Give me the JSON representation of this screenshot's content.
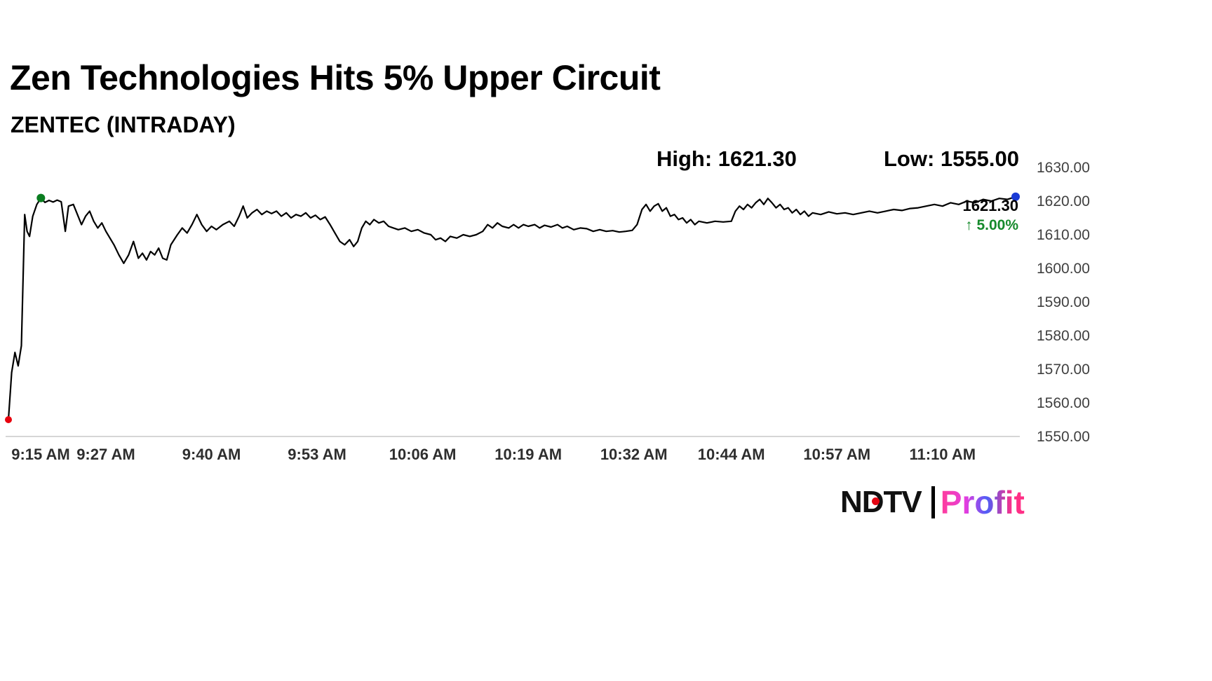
{
  "header": {
    "title": "Zen Technologies Hits 5% Upper Circuit",
    "subtitle": "ZENTEC (INTRADAY)"
  },
  "stats": {
    "high": "High: 1621.30",
    "low": "Low: 1555.00"
  },
  "callout": {
    "price": "1621.30",
    "change": "↑ 5.00%",
    "change_color": "#168a2c"
  },
  "branding": {
    "ndtv": "NDTV",
    "profit": "Profit",
    "dot_color": "#e30613",
    "profit_gradient": [
      "#ff3d9a",
      "#e43ddf",
      "#4e5ef7",
      "#ff2f86"
    ]
  },
  "chart_data": {
    "type": "line",
    "title": "ZENTEC intraday price",
    "xlabel": "",
    "ylabel": "",
    "xlim": [
      0,
      124
    ],
    "ylim": [
      1550,
      1630
    ],
    "grid": false,
    "legend": "none",
    "line_color": "#000000",
    "axis_color": "#c9c9c9",
    "high": 1621.3,
    "low": 1555.0,
    "last": 1621.3,
    "change_pct": 5.0,
    "x_ticks": [
      {
        "t": 0,
        "label": "9:15 AM"
      },
      {
        "t": 12,
        "label": "9:27 AM"
      },
      {
        "t": 25,
        "label": "9:40 AM"
      },
      {
        "t": 38,
        "label": "9:53 AM"
      },
      {
        "t": 51,
        "label": "10:06 AM"
      },
      {
        "t": 64,
        "label": "10:19 AM"
      },
      {
        "t": 77,
        "label": "10:32 AM"
      },
      {
        "t": 89,
        "label": "10:44 AM"
      },
      {
        "t": 102,
        "label": "10:57 AM"
      },
      {
        "t": 115,
        "label": "11:10 AM"
      }
    ],
    "y_ticks": [
      {
        "value": 1630,
        "label": "1630.00"
      },
      {
        "value": 1620,
        "label": "1620.00"
      },
      {
        "value": 1610,
        "label": "1610.00"
      },
      {
        "value": 1600,
        "label": "1600.00"
      },
      {
        "value": 1590,
        "label": "1590.00"
      },
      {
        "value": 1580,
        "label": "1580.00"
      },
      {
        "value": 1570,
        "label": "1570.00"
      },
      {
        "value": 1560,
        "label": "1560.00"
      },
      {
        "value": 1550,
        "label": "1550.00"
      }
    ],
    "markers": [
      {
        "name": "open-low",
        "t": 0,
        "price": 1555.0,
        "color": "#e8000d",
        "r": 5
      },
      {
        "name": "early-high",
        "t": 4,
        "price": 1620.9,
        "color": "#0a7d20",
        "r": 6
      },
      {
        "name": "last-price",
        "t": 124,
        "price": 1621.3,
        "color": "#1a3bd6",
        "r": 6
      }
    ],
    "series": [
      {
        "name": "ZENTEC",
        "points": [
          [
            0,
            1555
          ],
          [
            0.4,
            1569
          ],
          [
            0.8,
            1575
          ],
          [
            1.2,
            1571
          ],
          [
            1.6,
            1577
          ],
          [
            2.0,
            1616
          ],
          [
            2.3,
            1611
          ],
          [
            2.6,
            1609.5
          ],
          [
            3.0,
            1615.5
          ],
          [
            3.5,
            1619
          ],
          [
            4.0,
            1620.9
          ],
          [
            4.5,
            1619.6
          ],
          [
            5.0,
            1620.2
          ],
          [
            5.5,
            1619.7
          ],
          [
            6.0,
            1620.3
          ],
          [
            6.5,
            1619.8
          ],
          [
            7.0,
            1611
          ],
          [
            7.4,
            1618.5
          ],
          [
            8.0,
            1619
          ],
          [
            8.5,
            1616
          ],
          [
            9.0,
            1613
          ],
          [
            9.5,
            1615.5
          ],
          [
            10.0,
            1617
          ],
          [
            10.5,
            1614
          ],
          [
            11.0,
            1612
          ],
          [
            11.5,
            1613.5
          ],
          [
            12.0,
            1611
          ],
          [
            13.0,
            1607
          ],
          [
            13.6,
            1604
          ],
          [
            14.2,
            1601.5
          ],
          [
            14.8,
            1604
          ],
          [
            15.4,
            1608
          ],
          [
            16.0,
            1603
          ],
          [
            16.5,
            1604.5
          ],
          [
            17.0,
            1602.5
          ],
          [
            17.5,
            1605
          ],
          [
            18.0,
            1604
          ],
          [
            18.5,
            1606
          ],
          [
            19.0,
            1603
          ],
          [
            19.5,
            1602.5
          ],
          [
            20.0,
            1607
          ],
          [
            20.8,
            1610
          ],
          [
            21.4,
            1612
          ],
          [
            22.0,
            1610.5
          ],
          [
            22.6,
            1613
          ],
          [
            23.2,
            1616
          ],
          [
            23.8,
            1613
          ],
          [
            24.4,
            1611
          ],
          [
            25.0,
            1612.5
          ],
          [
            25.6,
            1611.5
          ],
          [
            26.4,
            1613
          ],
          [
            27.2,
            1614
          ],
          [
            27.8,
            1612.5
          ],
          [
            28.4,
            1615.5
          ],
          [
            28.9,
            1618.5
          ],
          [
            29.4,
            1615
          ],
          [
            30.0,
            1616.5
          ],
          [
            30.6,
            1617.5
          ],
          [
            31.2,
            1616
          ],
          [
            31.8,
            1617
          ],
          [
            32.4,
            1616.3
          ],
          [
            33.0,
            1617
          ],
          [
            33.6,
            1615.5
          ],
          [
            34.2,
            1616.5
          ],
          [
            34.8,
            1615
          ],
          [
            35.4,
            1616
          ],
          [
            36.0,
            1615.5
          ],
          [
            36.6,
            1616.5
          ],
          [
            37.2,
            1615
          ],
          [
            37.8,
            1615.8
          ],
          [
            38.4,
            1614.5
          ],
          [
            39.0,
            1615.3
          ],
          [
            39.6,
            1613
          ],
          [
            40.2,
            1610.5
          ],
          [
            40.8,
            1608
          ],
          [
            41.4,
            1607
          ],
          [
            42.0,
            1608.5
          ],
          [
            42.5,
            1606.5
          ],
          [
            43.0,
            1608
          ],
          [
            43.5,
            1612
          ],
          [
            44.0,
            1614
          ],
          [
            44.5,
            1613
          ],
          [
            45.0,
            1614.5
          ],
          [
            45.6,
            1613.5
          ],
          [
            46.2,
            1614
          ],
          [
            46.8,
            1612.5
          ],
          [
            47.4,
            1612
          ],
          [
            48.0,
            1611.5
          ],
          [
            48.8,
            1612
          ],
          [
            49.6,
            1611
          ],
          [
            50.4,
            1611.5
          ],
          [
            51.2,
            1610.5
          ],
          [
            52.0,
            1610
          ],
          [
            52.6,
            1608.5
          ],
          [
            53.2,
            1609
          ],
          [
            53.8,
            1608
          ],
          [
            54.4,
            1609.5
          ],
          [
            55.2,
            1609
          ],
          [
            56.0,
            1610
          ],
          [
            56.8,
            1609.5
          ],
          [
            57.6,
            1610
          ],
          [
            58.4,
            1611
          ],
          [
            59.0,
            1613
          ],
          [
            59.6,
            1612
          ],
          [
            60.2,
            1613.5
          ],
          [
            60.8,
            1612.5
          ],
          [
            61.6,
            1612
          ],
          [
            62.2,
            1613
          ],
          [
            62.8,
            1612
          ],
          [
            63.4,
            1613
          ],
          [
            64.0,
            1612.5
          ],
          [
            64.8,
            1613
          ],
          [
            65.4,
            1612
          ],
          [
            66.0,
            1612.8
          ],
          [
            66.8,
            1612.3
          ],
          [
            67.6,
            1613
          ],
          [
            68.2,
            1612
          ],
          [
            68.8,
            1612.5
          ],
          [
            69.6,
            1611.5
          ],
          [
            70.4,
            1612
          ],
          [
            71.2,
            1611.8
          ],
          [
            72.0,
            1611
          ],
          [
            72.8,
            1611.5
          ],
          [
            73.6,
            1611
          ],
          [
            74.4,
            1611.2
          ],
          [
            75.2,
            1610.8
          ],
          [
            76.0,
            1611
          ],
          [
            76.8,
            1611.3
          ],
          [
            77.4,
            1613
          ],
          [
            78.0,
            1617.5
          ],
          [
            78.5,
            1619
          ],
          [
            79.0,
            1617
          ],
          [
            79.5,
            1618.5
          ],
          [
            80.0,
            1619.2
          ],
          [
            80.5,
            1617
          ],
          [
            81.0,
            1618
          ],
          [
            81.5,
            1615.5
          ],
          [
            82.0,
            1616
          ],
          [
            82.5,
            1614.5
          ],
          [
            83.0,
            1615
          ],
          [
            83.5,
            1613.5
          ],
          [
            84.0,
            1614.5
          ],
          [
            84.5,
            1613
          ],
          [
            85.0,
            1614
          ],
          [
            86.0,
            1613.5
          ],
          [
            87.0,
            1614
          ],
          [
            88.0,
            1613.8
          ],
          [
            89.0,
            1614
          ],
          [
            89.5,
            1617
          ],
          [
            90.0,
            1618.5
          ],
          [
            90.5,
            1617.5
          ],
          [
            91.0,
            1619
          ],
          [
            91.5,
            1618
          ],
          [
            92.0,
            1619.5
          ],
          [
            92.5,
            1620.5
          ],
          [
            93.0,
            1619
          ],
          [
            93.5,
            1620.8
          ],
          [
            94.0,
            1619.5
          ],
          [
            94.5,
            1618
          ],
          [
            95.0,
            1619
          ],
          [
            95.5,
            1617.5
          ],
          [
            96.0,
            1618
          ],
          [
            96.5,
            1616.5
          ],
          [
            97.0,
            1617.5
          ],
          [
            97.5,
            1616
          ],
          [
            98.0,
            1617
          ],
          [
            98.5,
            1615.5
          ],
          [
            99.0,
            1616.5
          ],
          [
            100,
            1616
          ],
          [
            101,
            1616.8
          ],
          [
            102,
            1616.2
          ],
          [
            103,
            1616.5
          ],
          [
            104,
            1616
          ],
          [
            105,
            1616.5
          ],
          [
            106,
            1617
          ],
          [
            107,
            1616.5
          ],
          [
            108,
            1617
          ],
          [
            109,
            1617.5
          ],
          [
            110,
            1617.2
          ],
          [
            111,
            1617.8
          ],
          [
            112,
            1618
          ],
          [
            113,
            1618.5
          ],
          [
            114,
            1619
          ],
          [
            115,
            1618.5
          ],
          [
            116,
            1619.5
          ],
          [
            117,
            1619
          ],
          [
            118,
            1620
          ],
          [
            119,
            1619.5
          ],
          [
            120,
            1620.5
          ],
          [
            121,
            1620
          ],
          [
            122,
            1620.8
          ],
          [
            123,
            1620.5
          ],
          [
            124,
            1621.3
          ]
        ]
      }
    ]
  }
}
